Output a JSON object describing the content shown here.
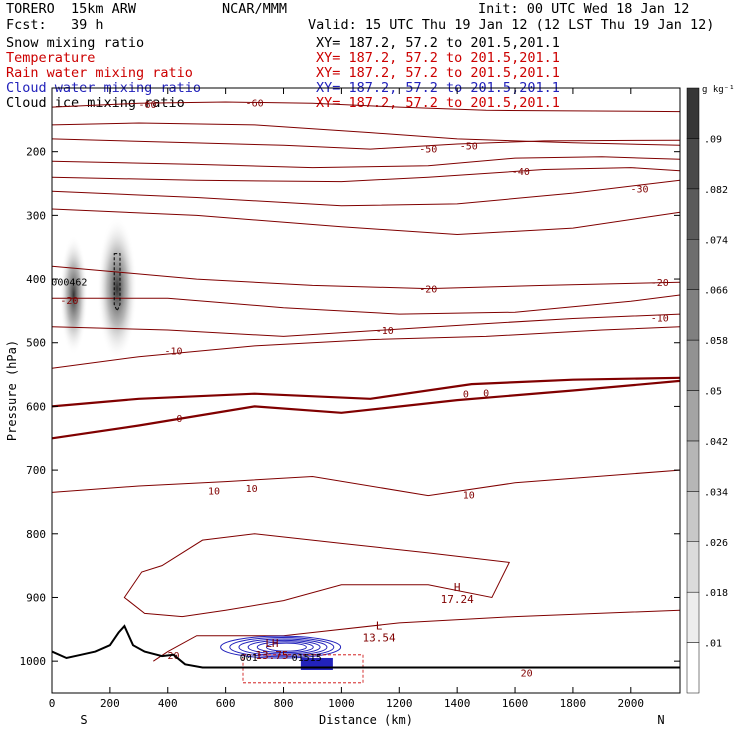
{
  "header": {
    "model": "TORERO  15km ARW",
    "org": "NCAR/MMM",
    "init": "Init: 00 UTC Wed 18 Jan 12",
    "fcst": "Fcst:   39 h",
    "valid": "Valid: 15 UTC Thu 19 Jan 12 (12 LST Thu 19 Jan 12)",
    "fields": [
      {
        "name": "Snow mixing ratio",
        "xy": "XY= 187.2, 57.2 to 201.5,201.1",
        "color": "#000000"
      },
      {
        "name": "Temperature",
        "xy": "XY= 187.2, 57.2 to 201.5,201.1",
        "color": "#cc0000"
      },
      {
        "name": "Rain water mixing ratio",
        "xy": "XY= 187.2, 57.2 to 201.5,201.1",
        "color": "#cc0000"
      },
      {
        "name": "Cloud water mixing ratio",
        "xy": "XY= 187.2, 57.2 to 201.5,201.1",
        "color": "#2222bb"
      },
      {
        "name": "Cloud ice mixing ratio",
        "xy": "XY= 187.2, 57.2 to 201.5,201.1",
        "color": "#cc0000"
      }
    ]
  },
  "chart_data": {
    "type": "cross-section",
    "xlabel": "Distance (km)",
    "ylabel": "Pressure (hPa)",
    "xlim": [
      0,
      2170
    ],
    "ylim": [
      1050,
      100
    ],
    "x_ticks": [
      0,
      200,
      400,
      600,
      800,
      1000,
      1200,
      1400,
      1600,
      1800,
      2000
    ],
    "y_ticks": [
      200,
      300,
      400,
      500,
      600,
      700,
      800,
      900,
      1000
    ],
    "left_end_label": "S",
    "right_end_label": "N",
    "colorbar": {
      "unit": "g kg⁻¹",
      "levels": [
        0.01,
        0.018,
        0.026,
        0.034,
        0.042,
        0.05,
        0.058,
        0.066,
        0.074,
        0.082,
        0.09
      ]
    },
    "temperature_contours": [
      {
        "label": "-60",
        "points": [
          [
            0,
            130
          ],
          [
            300,
            124
          ],
          [
            600,
            122
          ],
          [
            900,
            124
          ],
          [
            1200,
            130
          ],
          [
            1500,
            135
          ],
          [
            1800,
            136
          ],
          [
            2170,
            137
          ]
        ],
        "labels": [
          [
            -60,
            330,
            125
          ],
          [
            -60,
            700,
            123
          ]
        ]
      },
      {
        "label": "-60",
        "points": [
          [
            0,
            158
          ],
          [
            300,
            155
          ],
          [
            700,
            158
          ],
          [
            1100,
            170
          ],
          [
            1400,
            180
          ],
          [
            1800,
            186
          ],
          [
            2170,
            190
          ]
        ]
      },
      {
        "label": "-50",
        "points": [
          [
            0,
            180
          ],
          [
            400,
            185
          ],
          [
            800,
            190
          ],
          [
            1100,
            196
          ],
          [
            1400,
            188
          ],
          [
            1700,
            183
          ],
          [
            2170,
            182
          ]
        ],
        "labels": [
          [
            -50,
            1300,
            195
          ],
          [
            -50,
            1440,
            190
          ]
        ]
      },
      {
        "label": "-50",
        "points": [
          [
            0,
            215
          ],
          [
            500,
            220
          ],
          [
            900,
            225
          ],
          [
            1300,
            222
          ],
          [
            1600,
            210
          ],
          [
            1900,
            208
          ],
          [
            2170,
            212
          ]
        ]
      },
      {
        "label": "-40",
        "points": [
          [
            0,
            240
          ],
          [
            500,
            245
          ],
          [
            1000,
            247
          ],
          [
            1300,
            240
          ],
          [
            1700,
            228
          ],
          [
            2000,
            225
          ],
          [
            2170,
            230
          ]
        ],
        "labels": [
          [
            -40,
            1620,
            230
          ]
        ]
      },
      {
        "label": "-30",
        "points": [
          [
            0,
            262
          ],
          [
            500,
            272
          ],
          [
            1000,
            285
          ],
          [
            1400,
            282
          ],
          [
            1800,
            265
          ],
          [
            2170,
            245
          ]
        ],
        "labels": [
          [
            -30,
            2030,
            258
          ]
        ]
      },
      {
        "label": "-30",
        "points": [
          [
            0,
            290
          ],
          [
            500,
            300
          ],
          [
            1000,
            318
          ],
          [
            1400,
            330
          ],
          [
            1800,
            320
          ],
          [
            2170,
            295
          ]
        ]
      },
      {
        "label": "-20",
        "points": [
          [
            0,
            380
          ],
          [
            200,
            388
          ],
          [
            500,
            400
          ],
          [
            900,
            410
          ],
          [
            1300,
            415
          ],
          [
            1700,
            410
          ],
          [
            2170,
            405
          ]
        ],
        "labels": [
          [
            -20,
            60,
            433
          ],
          [
            -20,
            1300,
            415
          ],
          [
            -20,
            2100,
            405
          ]
        ]
      },
      {
        "label": "-20",
        "points": [
          [
            0,
            430
          ],
          [
            400,
            430
          ],
          [
            800,
            445
          ],
          [
            1200,
            455
          ],
          [
            1600,
            452
          ],
          [
            2000,
            435
          ],
          [
            2170,
            425
          ]
        ]
      },
      {
        "label": "-10",
        "points": [
          [
            0,
            475
          ],
          [
            400,
            480
          ],
          [
            800,
            490
          ],
          [
            1150,
            480
          ],
          [
            1500,
            470
          ],
          [
            1800,
            462
          ],
          [
            2170,
            455
          ]
        ],
        "labels": [
          [
            -10,
            420,
            512
          ],
          [
            -10,
            1150,
            480
          ],
          [
            -10,
            2100,
            460
          ]
        ]
      },
      {
        "label": "-10",
        "points": [
          [
            0,
            540
          ],
          [
            300,
            522
          ],
          [
            700,
            505
          ],
          [
            1100,
            495
          ],
          [
            1500,
            490
          ],
          [
            1900,
            480
          ],
          [
            2170,
            475
          ]
        ]
      },
      {
        "label": "0",
        "points": [
          [
            0,
            600
          ],
          [
            300,
            588
          ],
          [
            700,
            580
          ],
          [
            1100,
            588
          ],
          [
            1450,
            565
          ],
          [
            1800,
            558
          ],
          [
            2170,
            555
          ]
        ],
        "labels": [
          [
            0,
            440,
            618
          ],
          [
            0,
            1430,
            580
          ],
          [
            0,
            1500,
            578
          ]
        ],
        "bold": true
      },
      {
        "label": "0",
        "points": [
          [
            0,
            650
          ],
          [
            300,
            630
          ],
          [
            700,
            600
          ],
          [
            1000,
            610
          ],
          [
            1400,
            590
          ],
          [
            1800,
            575
          ],
          [
            2170,
            560
          ]
        ],
        "bold": true
      },
      {
        "label": "10",
        "points": [
          [
            0,
            735
          ],
          [
            300,
            725
          ],
          [
            600,
            718
          ],
          [
            900,
            710
          ],
          [
            1300,
            740
          ],
          [
            1600,
            720
          ],
          [
            2170,
            700
          ]
        ],
        "labels": [
          [
            10,
            560,
            732
          ],
          [
            10,
            690,
            728
          ],
          [
            10,
            1440,
            738
          ]
        ]
      },
      {
        "label": "20",
        "points": [
          [
            350,
            1000
          ],
          [
            400,
            985
          ],
          [
            500,
            960
          ],
          [
            800,
            960
          ],
          [
            1200,
            940
          ],
          [
            1600,
            930
          ],
          [
            2170,
            920
          ]
        ],
        "labels": [
          [
            20,
            420,
            990
          ],
          [
            20,
            1640,
            1018
          ]
        ]
      }
    ],
    "extrema": [
      {
        "type": "H",
        "value": "17.24",
        "x": 1400,
        "p": 890
      },
      {
        "type": "L",
        "value": "13.54",
        "x": 1130,
        "p": 950
      },
      {
        "type": "LH",
        "value": "13.75",
        "x": 760,
        "p": 978
      }
    ],
    "small_labels": [
      {
        "text": "000462",
        "x": 60,
        "p": 410
      },
      {
        "text": "001",
        "x": 680,
        "p": 1000
      },
      {
        "text": "01515",
        "x": 880,
        "p": 1000
      }
    ],
    "terrain": [
      [
        0,
        985
      ],
      [
        50,
        995
      ],
      [
        100,
        990
      ],
      [
        150,
        985
      ],
      [
        200,
        975
      ],
      [
        230,
        955
      ],
      [
        250,
        945
      ],
      [
        280,
        975
      ],
      [
        320,
        985
      ],
      [
        380,
        992
      ],
      [
        420,
        990
      ],
      [
        460,
        1005
      ],
      [
        520,
        1010
      ],
      [
        700,
        1010
      ],
      [
        1000,
        1010
      ],
      [
        1200,
        1010
      ],
      [
        1600,
        1010
      ],
      [
        2000,
        1010
      ],
      [
        2170,
        1010
      ]
    ]
  }
}
